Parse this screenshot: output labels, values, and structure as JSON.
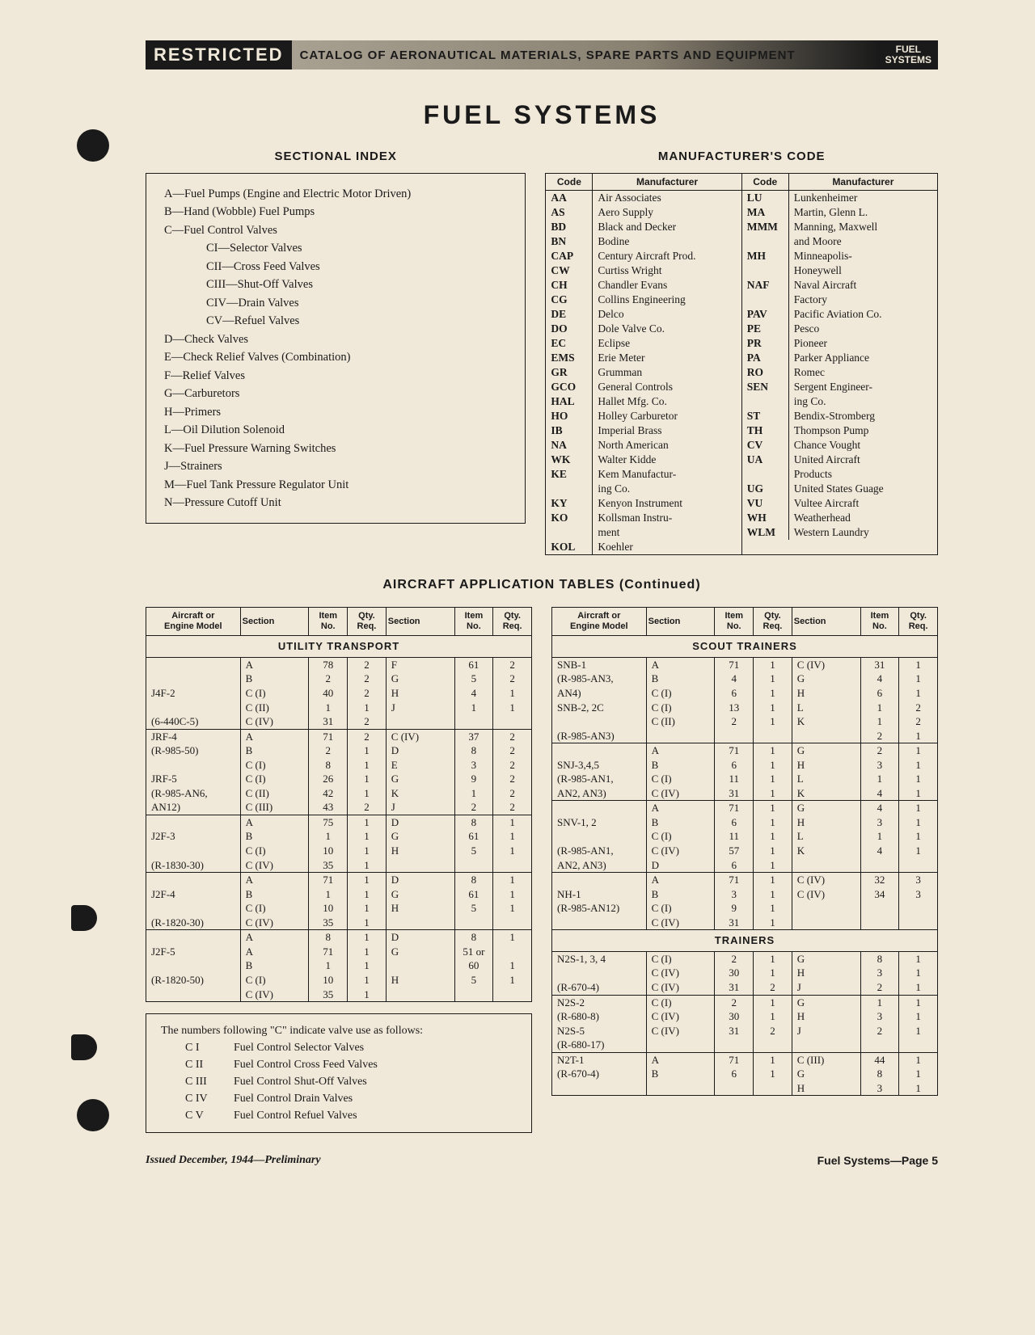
{
  "header": {
    "restricted": "RESTRICTED",
    "catalog": "CATALOG OF AERONAUTICAL MATERIALS, SPARE PARTS AND EQUIPMENT",
    "tag_l1": "FUEL",
    "tag_l2": "SYSTEMS"
  },
  "title": "FUEL SYSTEMS",
  "sectional": {
    "head": "SECTIONAL INDEX",
    "items": [
      "A—Fuel Pumps (Engine and Electric Motor Driven)",
      "B—Hand (Wobble) Fuel Pumps",
      "C—Fuel Control Valves"
    ],
    "sub_c": [
      "CI—Selector Valves",
      "CII—Cross Feed Valves",
      "CIII—Shut-Off Valves",
      "CIV—Drain Valves",
      "CV—Refuel Valves"
    ],
    "items2": [
      "D—Check Valves",
      "E—Check Relief Valves (Combination)",
      "F—Relief Valves",
      "G—Carburetors",
      "H—Primers",
      "L—Oil Dilution Solenoid",
      "K—Fuel Pressure Warning Switches",
      "J—Strainers",
      "M—Fuel Tank Pressure Regulator Unit",
      "N—Pressure Cutoff Unit"
    ]
  },
  "mfr": {
    "head": "MANUFACTURER'S CODE",
    "col_code": "Code",
    "col_mfr": "Manufacturer",
    "left": [
      {
        "c": "AA",
        "n": "Air Associates"
      },
      {
        "c": "AS",
        "n": "Aero Supply"
      },
      {
        "c": "BD",
        "n": "Black and Decker"
      },
      {
        "c": "BN",
        "n": "Bodine"
      },
      {
        "c": "CAP",
        "n": "Century Aircraft Prod."
      },
      {
        "c": "CW",
        "n": "Curtiss Wright"
      },
      {
        "c": "CH",
        "n": "Chandler Evans"
      },
      {
        "c": "CG",
        "n": "Collins Engineering"
      },
      {
        "c": "DE",
        "n": "Delco"
      },
      {
        "c": "DO",
        "n": "Dole Valve Co."
      },
      {
        "c": "EC",
        "n": "Eclipse"
      },
      {
        "c": "EMS",
        "n": "Erie Meter"
      },
      {
        "c": "GR",
        "n": "Grumman"
      },
      {
        "c": "GCO",
        "n": "General Controls"
      },
      {
        "c": "HAL",
        "n": "Hallet Mfg. Co."
      },
      {
        "c": "HO",
        "n": "Holley Carburetor"
      },
      {
        "c": "IB",
        "n": "Imperial Brass"
      },
      {
        "c": "NA",
        "n": "North American"
      },
      {
        "c": "WK",
        "n": "Walter Kidde"
      },
      {
        "c": "KE",
        "n": "Kem Manufactur-"
      },
      {
        "c": "",
        "n": "  ing Co.",
        "cont": true
      },
      {
        "c": "KY",
        "n": "Kenyon Instrument"
      },
      {
        "c": "KO",
        "n": "Kollsman Instru-"
      },
      {
        "c": "",
        "n": "  ment",
        "cont": true
      },
      {
        "c": "KOL",
        "n": "Koehler"
      }
    ],
    "right": [
      {
        "c": "LU",
        "n": "Lunkenheimer"
      },
      {
        "c": "MA",
        "n": "Martin, Glenn L."
      },
      {
        "c": "MMM",
        "n": "Manning, Maxwell"
      },
      {
        "c": "",
        "n": "  and Moore",
        "cont": true
      },
      {
        "c": "MH",
        "n": "Minneapolis-"
      },
      {
        "c": "",
        "n": "  Honeywell",
        "cont": true
      },
      {
        "c": "NAF",
        "n": "Naval Aircraft"
      },
      {
        "c": "",
        "n": "  Factory",
        "cont": true
      },
      {
        "c": "PAV",
        "n": "Pacific Aviation Co."
      },
      {
        "c": "PE",
        "n": "Pesco"
      },
      {
        "c": "PR",
        "n": "Pioneer"
      },
      {
        "c": "PA",
        "n": "Parker Appliance"
      },
      {
        "c": "RO",
        "n": "Romec"
      },
      {
        "c": "SEN",
        "n": "Sergent Engineer-"
      },
      {
        "c": "",
        "n": "  ing Co.",
        "cont": true
      },
      {
        "c": "ST",
        "n": "Bendix-Stromberg"
      },
      {
        "c": "TH",
        "n": "Thompson Pump"
      },
      {
        "c": "CV",
        "n": "Chance Vought"
      },
      {
        "c": "UA",
        "n": "United Aircraft"
      },
      {
        "c": "",
        "n": "  Products",
        "cont": true
      },
      {
        "c": "UG",
        "n": "United States Guage"
      },
      {
        "c": "VU",
        "n": "Vultee Aircraft"
      },
      {
        "c": "WH",
        "n": "Weatherhead"
      },
      {
        "c": "WLM",
        "n": "Western Laundry"
      }
    ]
  },
  "tables_head": "AIRCRAFT APPLICATION TABLES (Continued)",
  "app_cols": {
    "model": "Aircraft or\nEngine Model",
    "sec": "Section",
    "item": "Item\nNo.",
    "qty": "Qty.\nReq."
  },
  "left_table": {
    "cat": "UTILITY TRANSPORT",
    "groups": [
      {
        "rows": [
          [
            "",
            "A",
            "78",
            "2",
            "F",
            "61",
            "2"
          ],
          [
            "",
            "B",
            "2",
            "2",
            "G",
            "5",
            "2"
          ],
          [
            "J4F-2",
            "C (I)",
            "40",
            "2",
            "H",
            "4",
            "1"
          ],
          [
            "",
            "C (II)",
            "1",
            "1",
            "J",
            "1",
            "1"
          ],
          [
            "(6-440C-5)",
            "C (IV)",
            "31",
            "2",
            "",
            "",
            ""
          ]
        ]
      },
      {
        "rows": [
          [
            "JRF-4",
            "A",
            "71",
            "2",
            "C (IV)",
            "37",
            "2"
          ],
          [
            "(R-985-50)",
            "B",
            "2",
            "1",
            "D",
            "8",
            "2"
          ],
          [
            "",
            "C (I)",
            "8",
            "1",
            "E",
            "3",
            "2"
          ],
          [
            "JRF-5",
            "C (I)",
            "26",
            "1",
            "G",
            "9",
            "2"
          ],
          [
            "(R-985-AN6,",
            "C (II)",
            "42",
            "1",
            "K",
            "1",
            "2"
          ],
          [
            "  AN12)",
            "C (III)",
            "43",
            "2",
            "J",
            "2",
            "2"
          ]
        ]
      },
      {
        "rows": [
          [
            "",
            "A",
            "75",
            "1",
            "D",
            "8",
            "1"
          ],
          [
            "J2F-3",
            "B",
            "1",
            "1",
            "G",
            "61",
            "1"
          ],
          [
            "",
            "C (I)",
            "10",
            "1",
            "H",
            "5",
            "1"
          ],
          [
            "(R-1830-30)",
            "C (IV)",
            "35",
            "1",
            "",
            "",
            ""
          ]
        ]
      },
      {
        "rows": [
          [
            "",
            "A",
            "71",
            "1",
            "D",
            "8",
            "1"
          ],
          [
            "J2F-4",
            "B",
            "1",
            "1",
            "G",
            "61",
            "1"
          ],
          [
            "",
            "C (I)",
            "10",
            "1",
            "H",
            "5",
            "1"
          ],
          [
            "(R-1820-30)",
            "C (IV)",
            "35",
            "1",
            "",
            "",
            ""
          ]
        ]
      },
      {
        "rows": [
          [
            "",
            "A",
            "8",
            "1",
            "D",
            "8",
            "1"
          ],
          [
            "J2F-5",
            "A",
            "71",
            "1",
            "G",
            "51 or",
            ""
          ],
          [
            "",
            "B",
            "1",
            "1",
            "",
            "60",
            "1"
          ],
          [
            "(R-1820-50)",
            "C (I)",
            "10",
            "1",
            "H",
            "5",
            "1"
          ],
          [
            "",
            "C (IV)",
            "35",
            "1",
            "",
            "",
            ""
          ]
        ]
      }
    ]
  },
  "right_table": {
    "cat1": "SCOUT TRAINERS",
    "groups1": [
      {
        "rows": [
          [
            "SNB-1",
            "A",
            "71",
            "1",
            "C (IV)",
            "31",
            "1"
          ],
          [
            "(R-985-AN3,",
            "B",
            "4",
            "1",
            "G",
            "4",
            "1"
          ],
          [
            "  AN4)",
            "C (I)",
            "6",
            "1",
            "H",
            "6",
            "1"
          ],
          [
            "SNB-2, 2C",
            "C (I)",
            "13",
            "1",
            "L",
            "1",
            "2"
          ],
          [
            "",
            "C (II)",
            "2",
            "1",
            "K",
            "1",
            "2"
          ],
          [
            "(R-985-AN3)",
            "",
            "",
            "",
            "",
            "2",
            "1"
          ]
        ]
      },
      {
        "rows": [
          [
            "",
            "A",
            "71",
            "1",
            "G",
            "2",
            "1"
          ],
          [
            "SNJ-3,4,5",
            "B",
            "6",
            "1",
            "H",
            "3",
            "1"
          ],
          [
            "(R-985-AN1,",
            "C (I)",
            "11",
            "1",
            "L",
            "1",
            "1"
          ],
          [
            "  AN2, AN3)",
            "C (IV)",
            "31",
            "1",
            "K",
            "4",
            "1"
          ]
        ]
      },
      {
        "rows": [
          [
            "",
            "A",
            "71",
            "1",
            "G",
            "4",
            "1"
          ],
          [
            "SNV-1, 2",
            "B",
            "6",
            "1",
            "H",
            "3",
            "1"
          ],
          [
            "",
            "C (I)",
            "11",
            "1",
            "L",
            "1",
            "1"
          ],
          [
            "(R-985-AN1,",
            "C (IV)",
            "57",
            "1",
            "K",
            "4",
            "1"
          ],
          [
            "  AN2, AN3)",
            "D",
            "6",
            "1",
            "",
            "",
            ""
          ]
        ]
      },
      {
        "rows": [
          [
            "",
            "A",
            "71",
            "1",
            "C (IV)",
            "32",
            "3"
          ],
          [
            "NH-1",
            "B",
            "3",
            "1",
            "C (IV)",
            "34",
            "3"
          ],
          [
            "(R-985-AN12)",
            "C (I)",
            "9",
            "1",
            "",
            "",
            ""
          ],
          [
            "",
            "C (IV)",
            "31",
            "1",
            "",
            "",
            ""
          ]
        ]
      }
    ],
    "cat2": "TRAINERS",
    "groups2": [
      {
        "rows": [
          [
            "N2S-1, 3, 4",
            "C (I)",
            "2",
            "1",
            "G",
            "8",
            "1"
          ],
          [
            "",
            "C (IV)",
            "30",
            "1",
            "H",
            "3",
            "1"
          ],
          [
            "(R-670-4)",
            "C (IV)",
            "31",
            "2",
            "J",
            "2",
            "1"
          ]
        ]
      },
      {
        "rows": [
          [
            "N2S-2",
            "C (I)",
            "2",
            "1",
            "G",
            "1",
            "1"
          ],
          [
            "(R-680-8)",
            "C (IV)",
            "30",
            "1",
            "H",
            "3",
            "1"
          ],
          [
            "N2S-5",
            "C (IV)",
            "31",
            "2",
            "J",
            "2",
            "1"
          ],
          [
            "(R-680-17)",
            "",
            "",
            "",
            "",
            "",
            ""
          ]
        ]
      },
      {
        "rows": [
          [
            "N2T-1",
            "A",
            "71",
            "1",
            "C (III)",
            "44",
            "1"
          ],
          [
            "(R-670-4)",
            "B",
            "6",
            "1",
            "G",
            "8",
            "1"
          ],
          [
            "",
            "",
            "",
            "",
            "H",
            "3",
            "1"
          ]
        ]
      }
    ]
  },
  "notes": {
    "lead": "The numbers following \"C\" indicate valve use as follows:",
    "items": [
      [
        "C I",
        "Fuel Control Selector Valves"
      ],
      [
        "C II",
        "Fuel Control Cross Feed Valves"
      ],
      [
        "C III",
        "Fuel Control Shut-Off Valves"
      ],
      [
        "C IV",
        "Fuel Control Drain Valves"
      ],
      [
        "C V",
        "Fuel Control Refuel Valves"
      ]
    ]
  },
  "footer": {
    "left": "Issued December, 1944—Preliminary",
    "right": "Fuel Systems—Page 5"
  }
}
